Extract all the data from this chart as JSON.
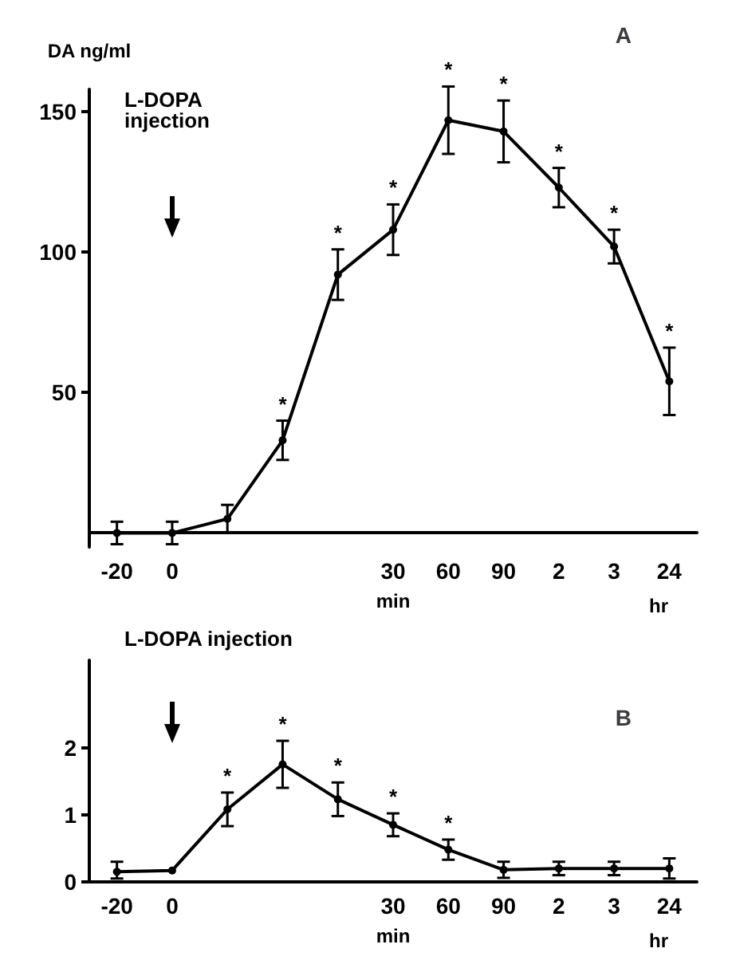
{
  "chart_data": [
    {
      "type": "line",
      "title": "A",
      "ylabel": "DA ng/ml",
      "xlabel": "min",
      "annotations": [
        "L-DOPA injection",
        "hr"
      ],
      "categories": [
        "-20",
        "0",
        null,
        null,
        null,
        "30",
        "60",
        "90",
        "2",
        "3",
        "24"
      ],
      "ylim": [
        -5,
        158
      ],
      "yticks": [
        50,
        100,
        150
      ],
      "marker": "circle",
      "line_style": "solid",
      "series": [
        {
          "color": "#000000",
          "values": [
            0,
            0,
            5,
            33,
            92,
            108,
            147,
            143,
            123,
            102,
            54
          ],
          "errors": [
            4,
            4,
            5,
            7,
            9,
            9,
            12,
            11,
            7,
            6,
            12
          ],
          "value_labels": [
            null,
            null,
            null,
            "*",
            "*",
            "*",
            "*",
            "*",
            "*",
            "*",
            "*"
          ]
        }
      ]
    },
    {
      "type": "line",
      "title": "B",
      "xlabel": "min",
      "annotations": [
        "L-DOPA injection",
        "hr"
      ],
      "categories": [
        "-20",
        "0",
        null,
        null,
        null,
        "30",
        "60",
        "90",
        "2",
        "3",
        "24"
      ],
      "ylim": [
        0,
        3.3
      ],
      "yticks": [
        0,
        1,
        2
      ],
      "marker": "circle",
      "line_style": "solid",
      "series": [
        {
          "color": "#000000",
          "values": [
            0.15,
            0.17,
            1.08,
            1.75,
            1.23,
            0.85,
            0.48,
            0.18,
            0.2,
            0.2,
            0.2
          ],
          "errors": [
            [
              0.05,
              0.3
            ],
            null,
            0.25,
            0.35,
            0.25,
            0.17,
            0.15,
            0.12,
            0.1,
            0.1,
            0.15
          ],
          "value_labels": [
            null,
            null,
            "*",
            "*",
            "*",
            "*",
            "*",
            null,
            null,
            null,
            null
          ]
        }
      ]
    }
  ]
}
